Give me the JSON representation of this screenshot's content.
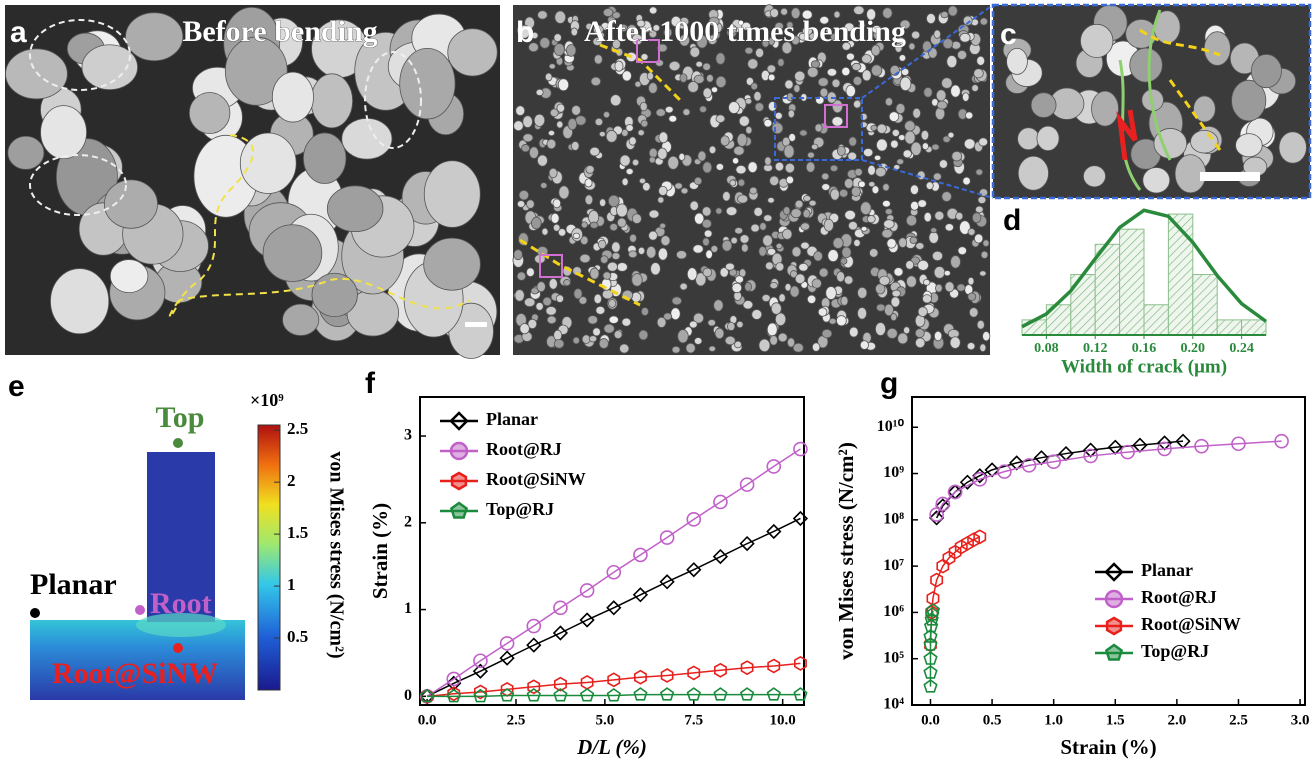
{
  "panels": {
    "a": {
      "label": "a",
      "title": "Before bending"
    },
    "b": {
      "label": "b",
      "title": "After 1000 times bending"
    },
    "c": {
      "label": "c"
    },
    "e": {
      "label": "e",
      "points": [
        "Top",
        "Planar",
        "Root",
        "Root@SiNW"
      ],
      "colorbar": {
        "multiplier": "×10⁹",
        "label": "von Mises stress (N/cm²)",
        "lim": [
          0,
          2.55
        ],
        "ticks": [
          0.5,
          1,
          1.5,
          2,
          2.5
        ]
      }
    }
  },
  "chart_data": [
    {
      "type": "histogram",
      "panel_label": "d",
      "x_label": "Width of crack (μm)",
      "color": "#2a8a3c",
      "bins": [
        0.06,
        0.08,
        0.1,
        0.12,
        0.14,
        0.16,
        0.18,
        0.2,
        0.22,
        0.24,
        0.26
      ],
      "counts": [
        1,
        2,
        4,
        6,
        7,
        2,
        8,
        4,
        1,
        1
      ],
      "fit": {
        "x": [
          0.06,
          0.08,
          0.1,
          0.12,
          0.14,
          0.16,
          0.18,
          0.2,
          0.22,
          0.24,
          0.26
        ],
        "y": [
          0.55,
          1.39,
          2.92,
          5.04,
          7.11,
          8.25,
          7.85,
          6.13,
          3.93,
          2.07,
          0.9
        ]
      },
      "xlim": [
        0.06,
        0.26
      ],
      "ylim": [
        0,
        8.6
      ],
      "xticks": [
        0.08,
        0.12,
        0.16,
        {
          "value": 0.2,
          "label": "0.20"
        },
        0.24
      ]
    },
    {
      "type": "line",
      "panel_label": "f",
      "x_label": "D/L (%)",
      "y_label": "Strain (%)",
      "x": [
        0,
        0.75,
        1.5,
        2.25,
        3,
        3.75,
        4.5,
        5.25,
        6,
        6.75,
        7.5,
        8.25,
        9,
        9.75,
        10.5
      ],
      "series": [
        {
          "name": "Planar",
          "color": "#000000",
          "marker": "diamond",
          "values": [
            0,
            0.15,
            0.29,
            0.44,
            0.59,
            0.73,
            0.88,
            1.02,
            1.17,
            1.32,
            1.46,
            1.61,
            1.76,
            1.9,
            2.05
          ]
        },
        {
          "name": "Root@RJ",
          "color": "#c060c8",
          "marker": "circle",
          "values": [
            0,
            0.2,
            0.41,
            0.61,
            0.81,
            1.02,
            1.22,
            1.43,
            1.63,
            1.83,
            2.04,
            2.24,
            2.44,
            2.65,
            2.85
          ]
        },
        {
          "name": "Root@SiNW",
          "color": "#e8201c",
          "marker": "hexagon",
          "values": [
            0,
            0.03,
            0.05,
            0.08,
            0.11,
            0.14,
            0.16,
            0.19,
            0.22,
            0.24,
            0.27,
            0.3,
            0.33,
            0.35,
            0.38
          ]
        },
        {
          "name": "Top@RJ",
          "color": "#1a8a3c",
          "marker": "pentagon",
          "values": [
            0,
            0,
            0,
            0.01,
            0.01,
            0.01,
            0.01,
            0.01,
            0.02,
            0.02,
            0.02,
            0.02,
            0.02,
            0.02,
            0.02
          ]
        }
      ],
      "xlim": [
        -0.2,
        10.6
      ],
      "ylim": [
        -0.1,
        3.45
      ],
      "xticks": [
        {
          "value": 0,
          "label": "0.0"
        },
        {
          "value": 2.5,
          "label": "2.5"
        },
        {
          "value": 5,
          "label": "5.0"
        },
        {
          "value": 7.5,
          "label": "7.5"
        },
        {
          "value": 10,
          "label": "10.0"
        }
      ],
      "yticks": [
        0,
        1,
        2,
        3
      ],
      "legend": "upper left"
    },
    {
      "type": "line",
      "panel_label": "g",
      "x_label": "Strain (%)",
      "y_label": "von Mises stress (N/cm²)",
      "log_y": true,
      "series": [
        {
          "name": "Planar",
          "color": "#000000",
          "marker": "diamond",
          "x": [
            0.05,
            0.1,
            0.2,
            0.3,
            0.4,
            0.5,
            0.7,
            0.9,
            1.1,
            1.3,
            1.5,
            1.7,
            1.9,
            2.05
          ],
          "values": [
            110000000,
            200000000,
            400000000,
            650000000,
            900000000,
            1200000000,
            1700000000,
            2200000000,
            2700000000,
            3200000000,
            3700000000,
            4100000000,
            4600000000,
            5000000000
          ]
        },
        {
          "name": "Root@RJ",
          "color": "#c060c8",
          "marker": "circle",
          "x": [
            0.05,
            0.1,
            0.2,
            0.4,
            0.6,
            0.8,
            1,
            1.3,
            1.6,
            1.9,
            2.2,
            2.5,
            2.85
          ],
          "values": [
            130000000,
            220000000,
            400000000,
            750000000,
            1100000000,
            1500000000,
            1800000000,
            2400000000,
            2900000000,
            3400000000,
            3900000000,
            4400000000,
            5000000000
          ]
        },
        {
          "name": "Root@SiNW",
          "color": "#e8201c",
          "marker": "hexagon",
          "x": [
            0,
            0.01,
            0.02,
            0.05,
            0.1,
            0.15,
            0.2,
            0.25,
            0.3,
            0.35,
            0.4
          ],
          "values": [
            200000,
            1000000,
            2000000,
            5000000,
            10000000,
            15000000,
            20000000,
            26000000,
            31000000,
            37000000,
            43000000
          ]
        },
        {
          "name": "Top@RJ",
          "color": "#1a8a3c",
          "marker": "pentagon",
          "x": [
            0,
            0,
            0,
            0,
            0,
            0.005,
            0.01,
            0.015,
            0.02
          ],
          "values": [
            25000,
            50000,
            100000,
            200000,
            300000,
            500000,
            700000,
            900000,
            1100000
          ]
        }
      ],
      "xlim": [
        -0.15,
        3.04
      ],
      "ylim": [
        10000,
        45000000000
      ],
      "xticks": [
        {
          "value": 0,
          "label": "0.0"
        },
        {
          "value": 0.5,
          "label": "0.5"
        },
        {
          "value": 1,
          "label": "1.0"
        },
        {
          "value": 1.5,
          "label": "1.5"
        },
        {
          "value": 2,
          "label": "2.0"
        },
        {
          "value": 2.5,
          "label": "2.5"
        },
        {
          "value": 3,
          "label": "3.0"
        }
      ],
      "yticks": [
        {
          "value": 10000,
          "label": "10⁴"
        },
        {
          "value": 100000,
          "label": "10⁵"
        },
        {
          "value": 1000000,
          "label": "10⁶"
        },
        {
          "value": 10000000,
          "label": "10⁷"
        },
        {
          "value": 100000000,
          "label": "10⁸"
        },
        {
          "value": 1000000000,
          "label": "10⁹"
        },
        {
          "value": 10000000000,
          "label": "10¹⁰"
        }
      ],
      "legend": "center right"
    }
  ]
}
